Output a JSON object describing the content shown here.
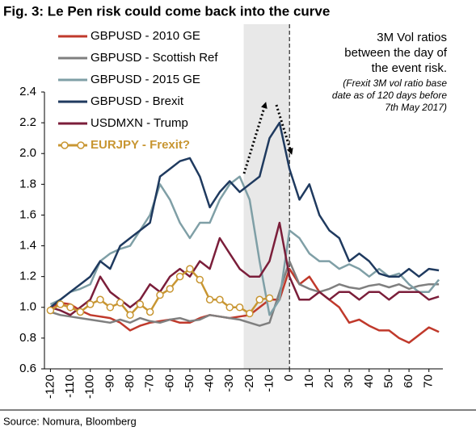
{
  "chart_data": {
    "type": "line",
    "title": "Fig. 3: Le Pen risk could come back into the curve",
    "annotation": [
      "3M Vol ratios",
      "between the day of",
      "the event risk."
    ],
    "note": [
      "(Frexit 3M vol ratio base",
      "date as of 120 days before",
      "7th May 2017)"
    ],
    "source": "Source: Nomura, Bloomberg",
    "x": [
      -120,
      -115,
      -110,
      -105,
      -100,
      -95,
      -90,
      -85,
      -80,
      -75,
      -70,
      -65,
      -60,
      -55,
      -50,
      -45,
      -40,
      -35,
      -30,
      -25,
      -20,
      -15,
      -10,
      -5,
      0,
      5,
      10,
      15,
      20,
      25,
      30,
      35,
      40,
      45,
      50,
      55,
      60,
      65,
      70,
      75
    ],
    "xlim": [
      -123,
      77
    ],
    "xticks": [
      -120,
      -110,
      -100,
      -90,
      -80,
      -70,
      -60,
      -50,
      -40,
      -30,
      -20,
      -10,
      0,
      10,
      20,
      30,
      40,
      50,
      60,
      70
    ],
    "ylim": [
      0.6,
      2.4
    ],
    "yticks": [
      0.6,
      0.8,
      {
        "value": 1,
        "label": "1.0"
      },
      1.2,
      1.4,
      1.6,
      1.8,
      {
        "value": 2,
        "label": "2.0"
      },
      2.2,
      2.4
    ],
    "highlight_range": [
      -23,
      0
    ],
    "event_line": 0,
    "series": [
      {
        "name": "GBPUSD - 2010 GE",
        "color": "#c0392b",
        "values": [
          1.0,
          1.03,
          1.02,
          0.98,
          0.95,
          0.94,
          0.93,
          0.9,
          0.85,
          0.88,
          0.9,
          0.91,
          0.92,
          0.9,
          0.9,
          0.93,
          0.95,
          0.94,
          0.93,
          0.94,
          0.95,
          1.0,
          1.05,
          1.05,
          1.25,
          1.15,
          1.2,
          1.1,
          1.05,
          1.0,
          0.9,
          0.92,
          0.88,
          0.85,
          0.85,
          0.8,
          0.77,
          0.82,
          0.87,
          0.84
        ]
      },
      {
        "name": "GBPUSD - Scottish Ref",
        "color": "#7f7f7f",
        "values": [
          0.97,
          0.95,
          0.94,
          0.93,
          0.92,
          0.91,
          0.9,
          0.92,
          0.9,
          0.93,
          0.91,
          0.9,
          0.92,
          0.93,
          0.91,
          0.92,
          0.95,
          0.94,
          0.93,
          0.92,
          0.9,
          0.88,
          0.9,
          1.1,
          1.3,
          1.15,
          1.12,
          1.1,
          1.12,
          1.15,
          1.13,
          1.12,
          1.14,
          1.15,
          1.13,
          1.15,
          1.12,
          1.14,
          1.15,
          1.15
        ]
      },
      {
        "name": "GBPUSD - 2015 GE",
        "color": "#7f9fa6",
        "values": [
          1.02,
          1.05,
          1.1,
          1.12,
          1.15,
          1.3,
          1.35,
          1.38,
          1.4,
          1.5,
          1.6,
          1.8,
          1.7,
          1.55,
          1.45,
          1.55,
          1.55,
          1.7,
          1.8,
          1.85,
          1.7,
          1.3,
          0.95,
          1.05,
          1.5,
          1.45,
          1.35,
          1.3,
          1.3,
          1.25,
          1.28,
          1.25,
          1.2,
          1.25,
          1.2,
          1.22,
          1.15,
          1.1,
          1.1,
          1.18
        ]
      },
      {
        "name": "GBPUSD - Brexit",
        "color": "#1f3a5f",
        "values": [
          1.0,
          1.05,
          1.1,
          1.15,
          1.2,
          1.3,
          1.25,
          1.4,
          1.45,
          1.5,
          1.55,
          1.85,
          1.9,
          1.95,
          1.97,
          1.85,
          1.65,
          1.75,
          1.82,
          1.75,
          1.8,
          1.85,
          2.1,
          2.2,
          1.9,
          1.7,
          1.8,
          1.6,
          1.5,
          1.45,
          1.3,
          1.35,
          1.3,
          1.22,
          1.2,
          1.2,
          1.25,
          1.2,
          1.25,
          1.24
        ]
      },
      {
        "name": "USDMXN - Trump",
        "color": "#7b1e3a",
        "values": [
          1.0,
          0.98,
          0.95,
          1.0,
          1.05,
          1.2,
          1.1,
          1.05,
          1.0,
          1.05,
          1.15,
          1.1,
          1.2,
          1.25,
          1.2,
          1.3,
          1.25,
          1.45,
          1.35,
          1.25,
          1.2,
          1.2,
          1.3,
          1.55,
          1.2,
          1.05,
          1.05,
          1.1,
          1.05,
          1.1,
          1.1,
          1.05,
          1.1,
          1.1,
          1.05,
          1.1,
          1.1,
          1.1,
          1.05,
          1.07
        ]
      },
      {
        "name": "EURJPY - Frexit?",
        "color": "#c89632",
        "marker": "circle",
        "values": [
          0.98,
          1.02,
          1.0,
          0.97,
          1.02,
          1.05,
          1.0,
          1.03,
          0.95,
          1.02,
          0.97,
          1.08,
          1.12,
          1.2,
          1.25,
          1.18,
          1.05,
          1.05,
          1.0,
          1.0,
          0.96,
          1.05,
          1.06,
          null,
          null,
          null,
          null,
          null,
          null,
          null,
          null,
          null,
          null,
          null,
          null,
          null,
          null,
          null,
          null,
          null
        ]
      }
    ]
  }
}
